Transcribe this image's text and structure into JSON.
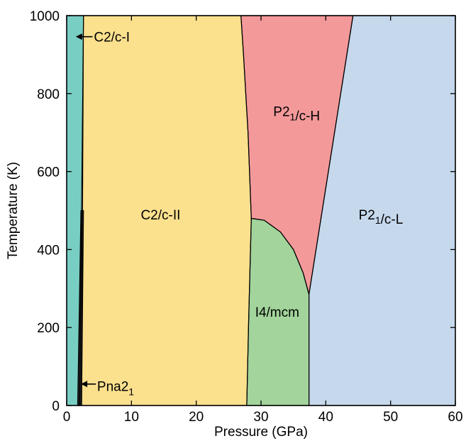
{
  "chart_data": {
    "type": "area",
    "title": "",
    "xlabel": "Pressure (GPa)",
    "ylabel": "Temperature (K)",
    "xlim": [
      0,
      60
    ],
    "ylim": [
      0,
      1000
    ],
    "x_ticks": [
      0,
      10,
      20,
      30,
      40,
      50,
      60
    ],
    "y_ticks": [
      0,
      200,
      400,
      600,
      800,
      1000
    ],
    "grid": false,
    "phases": [
      {
        "name": "C2/c-I",
        "color": "#79cec3",
        "boundary": [
          [
            0,
            0
          ],
          [
            2.0,
            0
          ],
          [
            2.6,
            1000
          ],
          [
            0,
            1000
          ]
        ]
      },
      {
        "name": "Pna2_1",
        "color": "#222222",
        "boundary": [
          [
            1.7,
            0
          ],
          [
            2.3,
            0
          ],
          [
            2.6,
            500
          ],
          [
            2.2,
            500
          ]
        ]
      },
      {
        "name": "C2/c-II",
        "color": "#fbe08e",
        "boundary": [
          [
            2.3,
            0
          ],
          [
            27.8,
            0
          ],
          [
            28.1,
            220
          ],
          [
            28.5,
            480
          ],
          [
            28.0,
            700
          ],
          [
            27.3,
            900
          ],
          [
            26.9,
            1000
          ],
          [
            2.6,
            1000
          ]
        ]
      },
      {
        "name": "P2_1/c-H",
        "color": "#f4999a",
        "boundary": [
          [
            26.9,
            1000
          ],
          [
            44.2,
            1000
          ],
          [
            37.4,
            285
          ],
          [
            36.5,
            340
          ],
          [
            35.0,
            400
          ],
          [
            33.0,
            445
          ],
          [
            30.5,
            475
          ],
          [
            28.5,
            480
          ],
          [
            28.0,
            700
          ],
          [
            27.3,
            900
          ]
        ]
      },
      {
        "name": "I4/mcm",
        "color": "#a2d49b",
        "boundary": [
          [
            27.8,
            0
          ],
          [
            37.4,
            0
          ],
          [
            37.4,
            285
          ],
          [
            36.5,
            340
          ],
          [
            35.0,
            400
          ],
          [
            33.0,
            445
          ],
          [
            30.5,
            475
          ],
          [
            28.5,
            480
          ],
          [
            28.1,
            220
          ]
        ]
      },
      {
        "name": "P2_1/c-L",
        "color": "#c5d8ec",
        "boundary": [
          [
            37.4,
            0
          ],
          [
            60,
            0
          ],
          [
            60,
            1000
          ],
          [
            44.2,
            1000
          ],
          [
            37.4,
            285
          ]
        ]
      }
    ],
    "labels": [
      {
        "text": "C2/c-II",
        "x": 14.5,
        "y": 490
      },
      {
        "text": "I4/mcm",
        "x": 32.5,
        "y": 240
      },
      {
        "text": "P2₁/c-L",
        "x": 48.5,
        "y": 490
      },
      {
        "text": "P2₁/c-H",
        "x": 35.5,
        "y": 755
      },
      {
        "text": "C2/c-I",
        "x": 4.2,
        "y": 946
      },
      {
        "text": "Pna2₁",
        "x": 4.7,
        "y": 50
      }
    ],
    "arrows": [
      {
        "from_x": 4.0,
        "from_y": 946,
        "to_x": 1.4,
        "to_y": 946
      },
      {
        "from_x": 4.5,
        "from_y": 55,
        "to_x": 2.2,
        "to_y": 55
      }
    ]
  }
}
